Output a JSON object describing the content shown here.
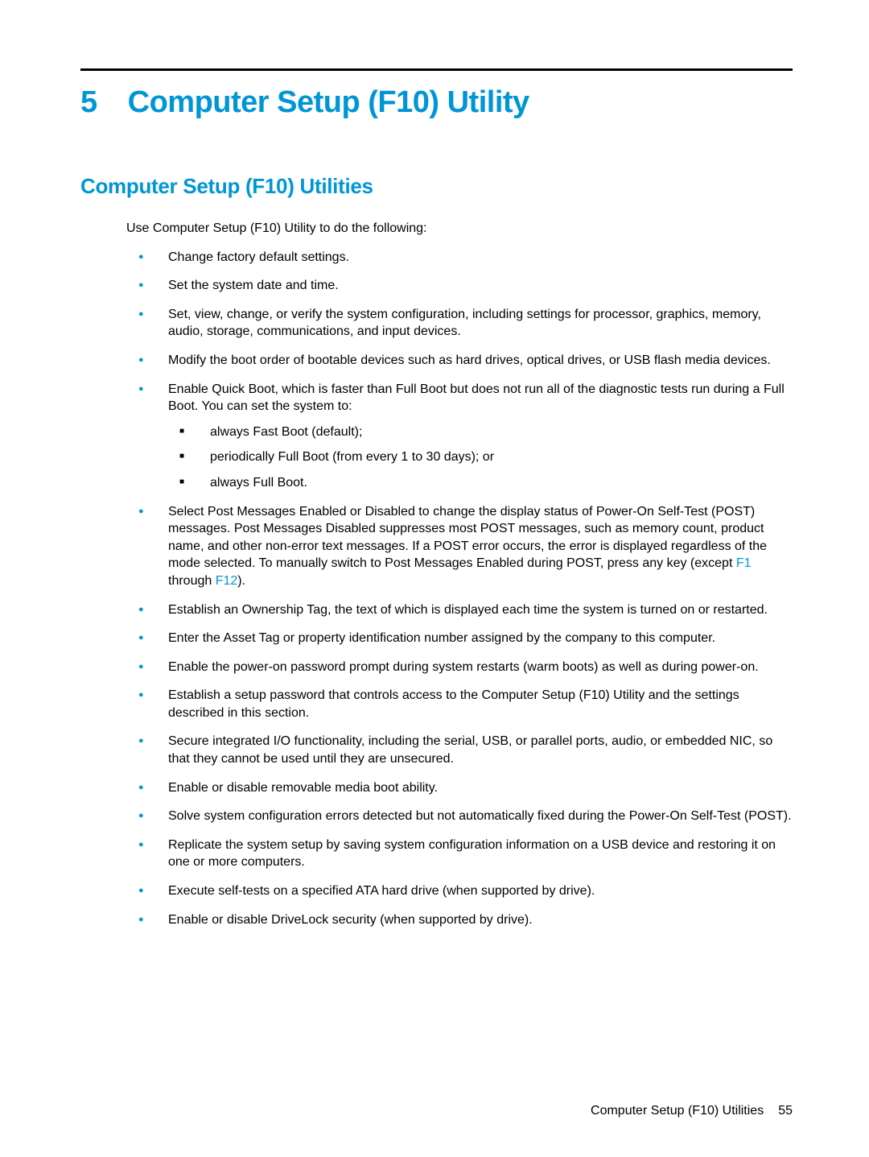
{
  "colors": {
    "accent": "#0096d6",
    "text": "#000000",
    "background": "#ffffff",
    "rule": "#000000"
  },
  "typography": {
    "body_fontsize": 16,
    "chapter_fontsize": 38,
    "section_fontsize": 26,
    "font_family": "Arial"
  },
  "chapter": {
    "number": "5",
    "title": "Computer Setup (F10) Utility"
  },
  "section": {
    "title": "Computer Setup (F10) Utilities",
    "intro": "Use Computer Setup (F10) Utility to do the following:"
  },
  "bullets": [
    {
      "text": "Change factory default settings."
    },
    {
      "text": "Set the system date and time."
    },
    {
      "text": "Set, view, change, or verify the system configuration, including settings for processor, graphics, memory, audio, storage, communications, and input devices."
    },
    {
      "text": "Modify the boot order of bootable devices such as hard drives, optical drives, or USB flash media devices."
    },
    {
      "text": "Enable Quick Boot, which is faster than Full Boot but does not run all of the diagnostic tests run during a Full Boot. You can set the system to:",
      "sub": [
        "always Fast Boot (default);",
        "periodically Full Boot (from every 1 to 30 days); or",
        "always Full Boot."
      ]
    },
    {
      "text_pre": "Select Post Messages Enabled or Disabled to change the display status of Power-On Self-Test (POST) messages. Post Messages Disabled suppresses most POST messages, such as memory count, product name, and other non-error text messages. If a POST error occurs, the error is displayed regardless of the mode selected. To manually switch to Post Messages Enabled during POST, press any key (except ",
      "key1": "F1",
      "mid": " through ",
      "key2": "F12",
      "text_post": ")."
    },
    {
      "text": "Establish an Ownership Tag, the text of which is displayed each time the system is turned on or restarted."
    },
    {
      "text": "Enter the Asset Tag or property identification number assigned by the company to this computer."
    },
    {
      "text": "Enable the power-on password prompt during system restarts (warm boots) as well as during power-on."
    },
    {
      "text": "Establish a setup password that controls access to the Computer Setup (F10) Utility and the settings described in this section."
    },
    {
      "text": "Secure integrated I/O functionality, including the serial, USB, or parallel ports, audio, or embedded NIC, so that they cannot be used until they are unsecured."
    },
    {
      "text": "Enable or disable removable media boot ability."
    },
    {
      "text": "Solve system configuration errors detected but not automatically fixed during the Power-On Self-Test (POST)."
    },
    {
      "text": "Replicate the system setup by saving system configuration information on a USB device and restoring it on one or more computers."
    },
    {
      "text": "Execute self-tests on a specified ATA hard drive (when supported by drive)."
    },
    {
      "text": "Enable or disable DriveLock security (when supported by drive)."
    }
  ],
  "footer": {
    "label": "Computer Setup (F10) Utilities",
    "page": "55"
  }
}
